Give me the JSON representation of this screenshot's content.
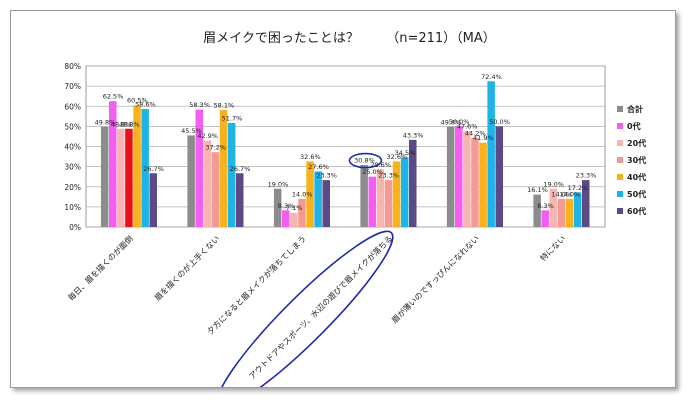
{
  "chart_data": {
    "type": "bar",
    "title": "眉メイクで困ったことは？",
    "subtitle": "（n=211）（MA）",
    "ylim": [
      0,
      80
    ],
    "yticks": [
      "0%",
      "10%",
      "20%",
      "30%",
      "40%",
      "50%",
      "60%",
      "70%",
      "80%"
    ],
    "categories": [
      "毎日、眉を描くのが面倒",
      "眉を描くのが上手くない",
      "夕方になると眉メイクが落ちてしまう",
      "アウトドアやスポーツ、水辺の遊びで眉メイクが落ちる",
      "眉が薄いのですっぴんになれない",
      "特にない"
    ],
    "series": [
      {
        "name": "合計",
        "color": "#8c8c8c",
        "values": [
          49.8,
          45.5,
          19.0,
          30.8,
          49.8,
          16.1
        ],
        "labels": [
          "49.8%",
          "45.5%",
          "19.0%",
          "30.8%",
          "49.8%",
          "16.1%"
        ]
      },
      {
        "name": "0代",
        "color": "#f25ef2",
        "values": [
          62.5,
          58.3,
          8.3,
          25.0,
          50.0,
          8.3
        ],
        "labels": [
          "62.5%",
          "58.3%",
          "8.3%",
          "25.0%",
          "50.0%",
          "8.3%"
        ]
      },
      {
        "name": "20代",
        "color": "#f7b5b0",
        "values": [
          48.8,
          42.9,
          7.1,
          28.6,
          47.6,
          19.0
        ],
        "labels": [
          "48.8%",
          "42.9%",
          "7.1%",
          "28.6%",
          "47.6%",
          "19.0%"
        ]
      },
      {
        "name": "30代",
        "color": "#f49a94",
        "values": [
          48.8,
          37.2,
          14.0,
          23.3,
          44.2,
          14.0
        ],
        "labels": [
          "48.8%",
          "37.2%",
          "14.0%",
          "23.3%",
          "44.2%",
          "14.0%"
        ]
      },
      {
        "name": "40代",
        "color": "#f7b21c",
        "values": [
          60.5,
          58.1,
          32.6,
          32.6,
          41.9,
          14.0
        ],
        "labels": [
          "60.5%",
          "58.1%",
          "32.6%",
          "32.6%",
          "41.9%",
          "14.0%"
        ]
      },
      {
        "name": "50代",
        "color": "#1fb4e6",
        "values": [
          58.6,
          51.7,
          27.6,
          34.5,
          72.4,
          17.2
        ],
        "labels": [
          "58.6%",
          "51.7%",
          "27.6%",
          "34.5%",
          "72.4%",
          "17.2%"
        ]
      },
      {
        "name": "60代",
        "color": "#5b4a86",
        "values": [
          26.7,
          26.7,
          23.3,
          43.3,
          50.0,
          23.3
        ],
        "labels": [
          "26.7%",
          "26.7%",
          "23.3%",
          "43.3%",
          "50.0%",
          "23.3%"
        ]
      }
    ],
    "highlight": {
      "category_index": 0,
      "series_index": 3,
      "color": "#e8111b"
    },
    "annotations": [
      {
        "type": "ellipse",
        "target": "30.8%"
      },
      {
        "type": "ellipse",
        "target": "アウトドアやスポーツ、水辺の遊びで眉メイクが落ちる"
      }
    ],
    "legend": "right",
    "grid": true
  }
}
